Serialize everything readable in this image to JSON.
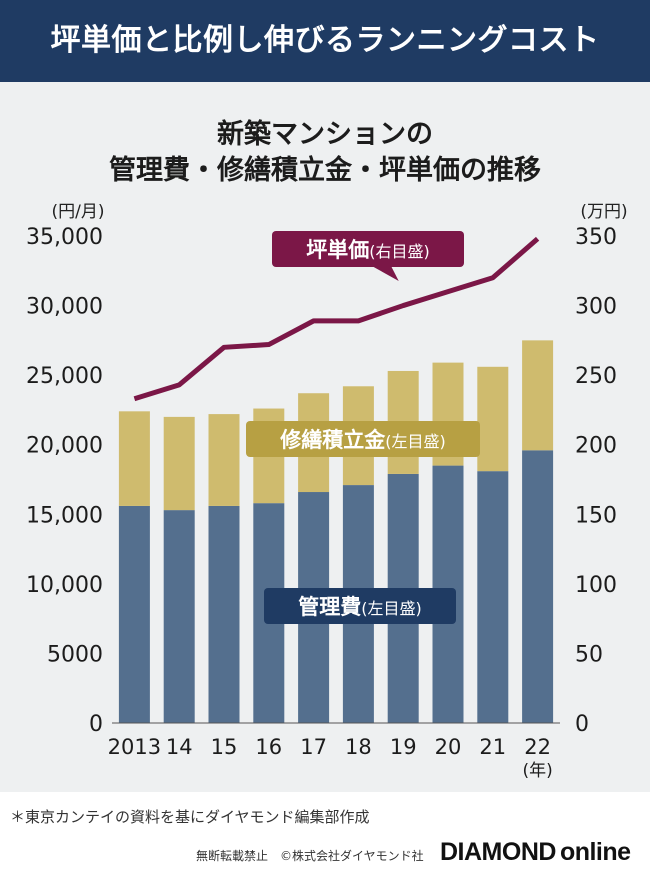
{
  "banner": {
    "title": "坪単価と比例し伸びるランニングコスト"
  },
  "chart_title": {
    "line1": "新築マンションの",
    "line2": "管理費・修繕積立金・坪単価の推移"
  },
  "chart_data": {
    "type": "bar",
    "stacked": true,
    "title": "新築マンションの管理費・修繕積立金・坪単価の推移",
    "categories": [
      "2013",
      "14",
      "15",
      "16",
      "17",
      "18",
      "19",
      "20",
      "21",
      "22"
    ],
    "x_unit": "(年)",
    "left_axis": {
      "unit": "(円/月)",
      "range": [
        0,
        35000
      ],
      "ticks": [
        0,
        5000,
        10000,
        15000,
        20000,
        25000,
        30000,
        35000
      ],
      "tick_labels": [
        "0",
        "5000",
        "10,000",
        "15,000",
        "20,000",
        "25,000",
        "30,000",
        "35,000"
      ]
    },
    "right_axis": {
      "unit": "(万円)",
      "range": [
        0,
        350
      ],
      "ticks": [
        0,
        50,
        100,
        150,
        200,
        250,
        300,
        350
      ],
      "tick_labels": [
        "0",
        "50",
        "100",
        "150",
        "200",
        "250",
        "300",
        "350"
      ]
    },
    "series": [
      {
        "name": "管理費",
        "axis_note": "(左目盛)",
        "type": "bar",
        "axis": "left",
        "color": "#546f8e",
        "values": [
          15600,
          15300,
          15600,
          15800,
          16600,
          17100,
          17900,
          18500,
          18100,
          19600
        ]
      },
      {
        "name": "修繕積立金",
        "axis_note": "(左目盛)",
        "type": "bar",
        "axis": "left",
        "color": "#cfbb6e",
        "values": [
          6800,
          6700,
          6600,
          6800,
          7100,
          7100,
          7400,
          7400,
          7500,
          7900
        ]
      },
      {
        "name": "坪単価",
        "axis_note": "(右目盛)",
        "type": "line",
        "axis": "right",
        "color": "#7b1747",
        "values": [
          233,
          243,
          270,
          272,
          289,
          289,
          300,
          310,
          320,
          348
        ]
      }
    ],
    "labels": [
      {
        "series": "坪単価",
        "text": "坪単価",
        "note": "(右目盛)",
        "bg": "#7b1747"
      },
      {
        "series": "修繕積立金",
        "text": "修繕積立金",
        "note": "(左目盛)",
        "bg": "#b7a043"
      },
      {
        "series": "管理費",
        "text": "管理費",
        "note": "(左目盛)",
        "bg": "#1f3b63"
      }
    ]
  },
  "footer": {
    "source": "＊東京カンテイの資料を基にダイヤモンド編集部作成",
    "copyright": "無断転載禁止　©株式会社ダイヤモンド社",
    "logo_part1": "DIAMOND",
    "logo_part2": "online"
  }
}
